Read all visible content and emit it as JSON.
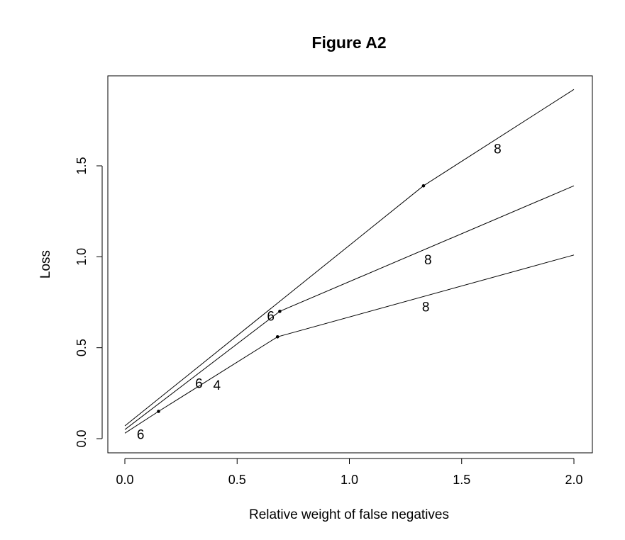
{
  "chart_data": {
    "type": "line",
    "title": "Figure A2",
    "xlabel": "Relative weight of false negatives",
    "ylabel": "Loss",
    "xlim": [
      0,
      2
    ],
    "ylim": [
      0,
      1.9
    ],
    "x_ticks": [
      {
        "value": 0.0,
        "label": "0.0"
      },
      {
        "value": 0.5,
        "label": "0.5"
      },
      {
        "value": 1.0,
        "label": "1.0"
      },
      {
        "value": 1.5,
        "label": "1.5"
      },
      {
        "value": 2.0,
        "label": "2.0"
      }
    ],
    "y_ticks": [
      {
        "value": 0.0,
        "label": "0.0"
      },
      {
        "value": 0.5,
        "label": "0.5"
      },
      {
        "value": 1.0,
        "label": "1.0"
      },
      {
        "value": 1.5,
        "label": "1.5"
      }
    ],
    "grid": false,
    "series": [
      {
        "x": [
          0,
          1.33,
          2.0
        ],
        "y": [
          0.07,
          1.39,
          1.92
        ]
      },
      {
        "x": [
          0,
          0.69,
          2.0
        ],
        "y": [
          0.05,
          0.7,
          1.39
        ]
      },
      {
        "x": [
          0,
          0.15,
          0.68,
          2.0
        ],
        "y": [
          0.03,
          0.15,
          0.56,
          1.01
        ]
      }
    ],
    "markers": [
      {
        "x": 1.33,
        "y": 1.39
      },
      {
        "x": 0.69,
        "y": 0.7
      },
      {
        "x": 0.68,
        "y": 0.56
      },
      {
        "x": 0.15,
        "y": 0.15
      }
    ],
    "annotations": [
      {
        "text": "8",
        "x": 1.66,
        "y": 1.59
      },
      {
        "text": "8",
        "x": 1.35,
        "y": 0.98
      },
      {
        "text": "8",
        "x": 1.34,
        "y": 0.72
      },
      {
        "text": "6",
        "x": 0.65,
        "y": 0.67
      },
      {
        "text": "6",
        "x": 0.33,
        "y": 0.3
      },
      {
        "text": "4",
        "x": 0.41,
        "y": 0.29
      },
      {
        "text": "6",
        "x": 0.07,
        "y": 0.02
      }
    ]
  }
}
